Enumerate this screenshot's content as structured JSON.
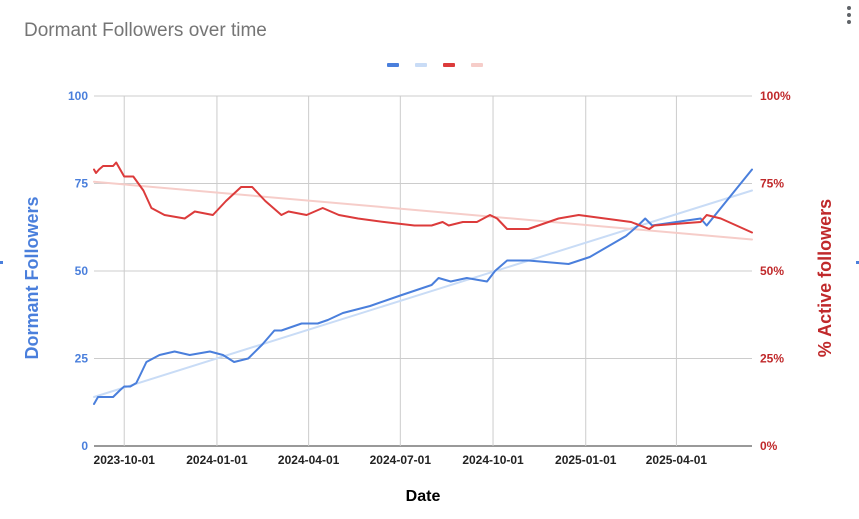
{
  "chart_data": {
    "type": "line",
    "title": "Dormant Followers over time",
    "xlabel": "Date",
    "ylabel": "Dormant Followers",
    "y2label": "% Active followers",
    "xlim": [
      "2023-09-01",
      "2025-06-15"
    ],
    "ylim": [
      0,
      100
    ],
    "y2lim": [
      0,
      100
    ],
    "x_ticks": [
      "2023-10-01",
      "2024-01-01",
      "2024-04-01",
      "2024-07-01",
      "2024-10-01",
      "2025-01-01",
      "2025-04-01"
    ],
    "y_ticks": [
      "0",
      "25",
      "50",
      "75",
      "100"
    ],
    "y2_ticks": [
      "0%",
      "25%",
      "50%",
      "75%",
      "100%"
    ],
    "grid": true,
    "legend": "top-center",
    "series": [
      {
        "axis": "left",
        "color": "#4a7fdc",
        "kind": "line",
        "points": [
          [
            "2023-09-01",
            12
          ],
          [
            "2023-09-03",
            13
          ],
          [
            "2023-09-05",
            14
          ],
          [
            "2023-09-20",
            14
          ],
          [
            "2023-09-27",
            16
          ],
          [
            "2023-10-01",
            17
          ],
          [
            "2023-10-07",
            17
          ],
          [
            "2023-10-13",
            18
          ],
          [
            "2023-10-18",
            21
          ],
          [
            "2023-10-23",
            24
          ],
          [
            "2023-11-05",
            26
          ],
          [
            "2023-11-20",
            27
          ],
          [
            "2023-12-05",
            26
          ],
          [
            "2023-12-25",
            27
          ],
          [
            "2024-01-07",
            26
          ],
          [
            "2024-01-18",
            24
          ],
          [
            "2024-02-01",
            25
          ],
          [
            "2024-02-15",
            29
          ],
          [
            "2024-02-27",
            33
          ],
          [
            "2024-03-05",
            33
          ],
          [
            "2024-03-25",
            35
          ],
          [
            "2024-04-10",
            35
          ],
          [
            "2024-04-20",
            36
          ],
          [
            "2024-05-05",
            38
          ],
          [
            "2024-06-01",
            40
          ],
          [
            "2024-07-01",
            43
          ],
          [
            "2024-08-01",
            46
          ],
          [
            "2024-08-08",
            48
          ],
          [
            "2024-08-20",
            47
          ],
          [
            "2024-09-05",
            48
          ],
          [
            "2024-09-25",
            47
          ],
          [
            "2024-10-03",
            50
          ],
          [
            "2024-10-15",
            53
          ],
          [
            "2024-11-05",
            53
          ],
          [
            "2024-12-15",
            52
          ],
          [
            "2025-01-05",
            54
          ],
          [
            "2025-02-10",
            60
          ],
          [
            "2025-02-22",
            63
          ],
          [
            "2025-03-01",
            65
          ],
          [
            "2025-03-08",
            63
          ],
          [
            "2025-04-25",
            65
          ],
          [
            "2025-05-01",
            63
          ],
          [
            "2025-06-15",
            79
          ]
        ]
      },
      {
        "axis": "left",
        "color": "#c9dcf6",
        "kind": "trend",
        "points": [
          [
            "2023-09-01",
            14
          ],
          [
            "2025-06-15",
            73
          ]
        ]
      },
      {
        "axis": "right",
        "color": "#dc3b3b",
        "kind": "line",
        "points": [
          [
            "2023-09-01",
            79
          ],
          [
            "2023-09-03",
            78
          ],
          [
            "2023-09-06",
            79
          ],
          [
            "2023-09-10",
            80
          ],
          [
            "2023-09-20",
            80
          ],
          [
            "2023-09-23",
            81
          ],
          [
            "2023-10-01",
            77
          ],
          [
            "2023-10-10",
            77
          ],
          [
            "2023-10-20",
            73
          ],
          [
            "2023-10-28",
            68
          ],
          [
            "2023-11-10",
            66
          ],
          [
            "2023-11-30",
            65
          ],
          [
            "2023-12-10",
            67
          ],
          [
            "2023-12-28",
            66
          ],
          [
            "2024-01-10",
            70
          ],
          [
            "2024-01-25",
            74
          ],
          [
            "2024-02-05",
            74
          ],
          [
            "2024-02-18",
            70
          ],
          [
            "2024-03-05",
            66
          ],
          [
            "2024-03-12",
            67
          ],
          [
            "2024-03-30",
            66
          ],
          [
            "2024-04-15",
            68
          ],
          [
            "2024-05-01",
            66
          ],
          [
            "2024-05-20",
            65
          ],
          [
            "2024-06-15",
            64
          ],
          [
            "2024-07-15",
            63
          ],
          [
            "2024-08-01",
            63
          ],
          [
            "2024-08-12",
            64
          ],
          [
            "2024-08-18",
            63
          ],
          [
            "2024-09-01",
            64
          ],
          [
            "2024-09-15",
            64
          ],
          [
            "2024-09-28",
            66
          ],
          [
            "2024-10-05",
            65
          ],
          [
            "2024-10-15",
            62
          ],
          [
            "2024-11-05",
            62
          ],
          [
            "2024-12-05",
            65
          ],
          [
            "2024-12-25",
            66
          ],
          [
            "2025-02-15",
            64
          ],
          [
            "2025-03-05",
            62
          ],
          [
            "2025-03-10",
            63
          ],
          [
            "2025-04-25",
            64
          ],
          [
            "2025-05-01",
            66
          ],
          [
            "2025-05-15",
            65
          ],
          [
            "2025-06-15",
            61
          ]
        ]
      },
      {
        "axis": "right",
        "color": "#f6cdc9",
        "kind": "trend",
        "points": [
          [
            "2023-09-01",
            75.5
          ],
          [
            "2025-06-15",
            59
          ]
        ]
      }
    ]
  }
}
